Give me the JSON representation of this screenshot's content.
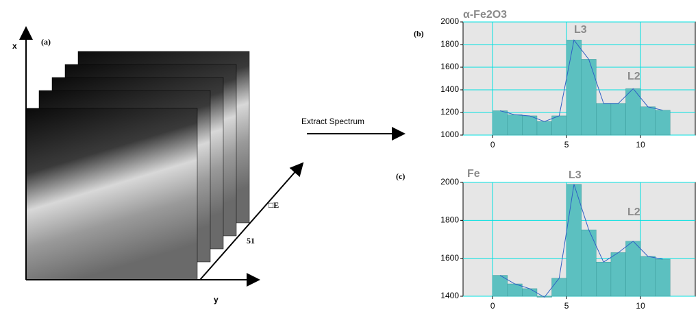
{
  "panel_a": {
    "label": "(a)",
    "x_axis": "x",
    "y_axis": "y",
    "energy_axis": "□E",
    "slices": "51"
  },
  "arrow_label": "Extract Spectrum",
  "chart_data": [
    {
      "type": "histogram",
      "label": "(b)",
      "title": "α-Fe2O3",
      "bins": [
        0,
        1,
        2,
        3,
        4,
        5,
        6,
        7,
        8,
        9,
        10,
        11,
        12
      ],
      "values": [
        1215,
        1180,
        1170,
        1120,
        1170,
        1840,
        1670,
        1280,
        1280,
        1410,
        1250,
        1220
      ],
      "color": "#5cc0c0",
      "line_color": "#2f5fc4",
      "line": true,
      "xlim": [
        -2,
        13.7
      ],
      "xticks": [
        0,
        5,
        10
      ],
      "ylim": [
        1000,
        2000
      ],
      "yticks": [
        1000,
        1200,
        1400,
        1600,
        1800,
        2000
      ],
      "grid": true,
      "annotations": [
        "L3",
        "L2"
      ]
    },
    {
      "type": "histogram",
      "label": "(c)",
      "title": "Fe",
      "bins": [
        0,
        1,
        2,
        3,
        4,
        5,
        6,
        7,
        8,
        9,
        10,
        11,
        12
      ],
      "values": [
        1510,
        1465,
        1440,
        1395,
        1495,
        1990,
        1750,
        1580,
        1630,
        1690,
        1610,
        1595
      ],
      "color": "#5cc0c0",
      "line_color": "#2f5fc4",
      "line": true,
      "xlim": [
        -2,
        13.7
      ],
      "xticks": [
        0,
        5,
        10
      ],
      "ylim": [
        1400,
        2000
      ],
      "yticks": [
        1400,
        1600,
        1800,
        2000
      ],
      "grid": true,
      "annotations": [
        "L3",
        "L2"
      ]
    }
  ]
}
